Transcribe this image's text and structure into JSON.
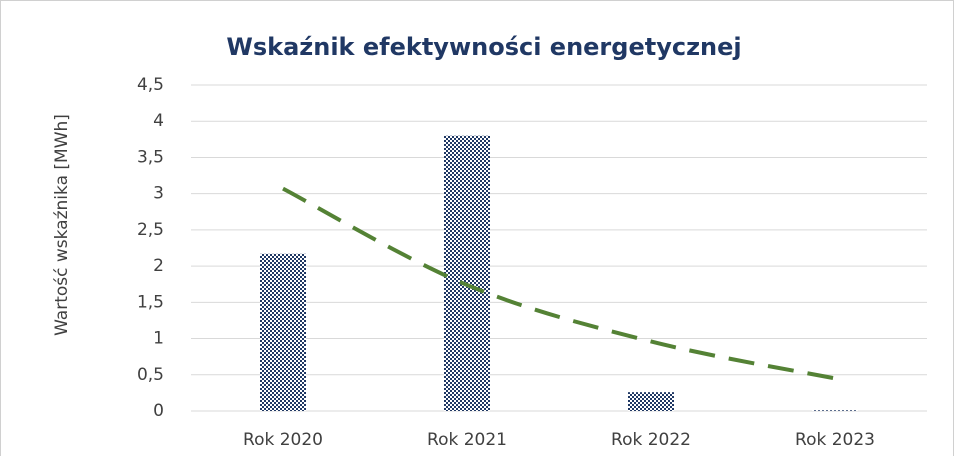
{
  "chart_data": {
    "type": "bar",
    "title": "Wskaźnik efektywności energetycznej",
    "y_label": "Wartość wskaźnika [MWh]",
    "categories": [
      "Rok 2020",
      "Rok 2021",
      "Rok 2022",
      "Rok 2023"
    ],
    "values": [
      2.17,
      3.8,
      0.26,
      0.01
    ],
    "color": "#203864",
    "trend": {
      "values": [
        3.07,
        1.74,
        0.96,
        0.45
      ],
      "color": "#548235"
    },
    "ylim": [
      0,
      4.5
    ],
    "yticks": [
      0,
      {
        "value": 0.5,
        "label": "0,5"
      },
      1,
      {
        "value": 1.5,
        "label": "1,5"
      },
      2,
      {
        "value": 2.5,
        "label": "2,5"
      },
      3,
      {
        "value": 3.5,
        "label": "3,5"
      },
      4,
      {
        "value": 4.5,
        "label": "4,5"
      }
    ],
    "grid": true
  }
}
